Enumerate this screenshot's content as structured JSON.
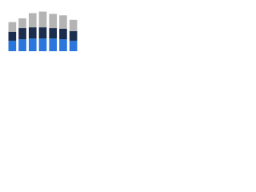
{
  "chart_data": {
    "type": "stacked_bar",
    "categories": [
      null,
      null,
      null,
      null,
      null,
      null,
      null
    ],
    "series": [
      {
        "color": "#2a76dc",
        "values": [
          14,
          16,
          17,
          17,
          17,
          16,
          14
        ]
      },
      {
        "color": "#1b2d4f",
        "values": [
          12,
          15,
          15,
          15,
          14,
          14,
          13
        ]
      },
      {
        "color": "#b4b4b4",
        "values": [
          13,
          13,
          19,
          21,
          19,
          18,
          15
        ]
      }
    ],
    "ylim": [
      0,
      60
    ]
  }
}
